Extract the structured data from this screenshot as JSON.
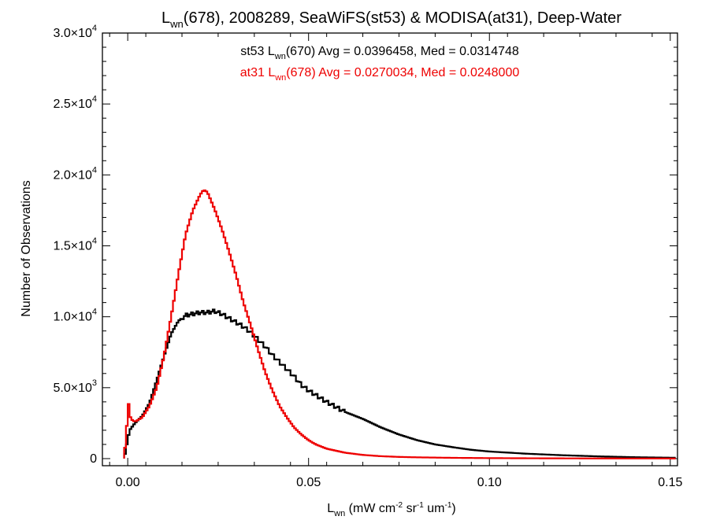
{
  "chart_data": {
    "type": "line",
    "title": {
      "main": "L",
      "sub": "wn",
      "rest": "(678), 2008289, SeaWiFS(st53) & MODISA(at31), Deep-Water"
    },
    "xlabel": {
      "main": "L",
      "sub": "wn",
      "units": [
        " (mW cm",
        "-2",
        " sr",
        "-1",
        " um",
        "-1",
        ")"
      ]
    },
    "ylabel": "Number of Observations",
    "xlim": [
      -0.007,
      0.152
    ],
    "ylim": [
      -500,
      30000
    ],
    "x_ticks": [
      {
        "value": 0.0,
        "label": "0.00"
      },
      {
        "value": 0.05,
        "label": "0.05"
      },
      {
        "value": 0.1,
        "label": "0.10"
      },
      {
        "value": 0.15,
        "label": "0.15"
      }
    ],
    "y_ticks": [
      {
        "value": 0,
        "mant": "0",
        "exp": ""
      },
      {
        "value": 5000,
        "mant": "5.0×10",
        "exp": "3"
      },
      {
        "value": 10000,
        "mant": "1.0×10",
        "exp": "4"
      },
      {
        "value": 15000,
        "mant": "1.5×10",
        "exp": "4"
      },
      {
        "value": 20000,
        "mant": "2.0×10",
        "exp": "4"
      },
      {
        "value": 25000,
        "mant": "2.5×10",
        "exp": "4"
      },
      {
        "value": 30000,
        "mant": "3.0×10",
        "exp": "4"
      }
    ],
    "legend_placement": "top-center",
    "series": [
      {
        "name": "st53",
        "color": "#000000",
        "legend": {
          "pre": "st53 L",
          "sub": "wn",
          "post": "(670) Avg = 0.0396458, Med = 0.0314748"
        },
        "x": [
          -0.001,
          0.0005,
          0.002,
          0.004,
          0.006,
          0.008,
          0.01,
          0.012,
          0.014,
          0.016,
          0.018,
          0.02,
          0.022,
          0.024,
          0.026,
          0.028,
          0.03,
          0.032,
          0.034,
          0.036,
          0.038,
          0.04,
          0.042,
          0.044,
          0.046,
          0.048,
          0.05,
          0.055,
          0.06,
          0.065,
          0.07,
          0.075,
          0.08,
          0.085,
          0.09,
          0.095,
          0.1,
          0.11,
          0.12,
          0.13,
          0.14,
          0.1515
        ],
        "y": [
          0,
          2000,
          2500,
          3000,
          3900,
          5500,
          7200,
          8800,
          9700,
          10100,
          10200,
          10300,
          10300,
          10400,
          10200,
          9900,
          9600,
          9300,
          8900,
          8400,
          7900,
          7300,
          6800,
          6300,
          5800,
          5200,
          4800,
          4000,
          3300,
          2800,
          2200,
          1700,
          1300,
          1000,
          800,
          620,
          500,
          350,
          240,
          160,
          100,
          60
        ]
      },
      {
        "name": "at31",
        "color": "#ee0000",
        "legend": {
          "pre": "at31 L",
          "sub": "wn",
          "post": "(678) Avg = 0.0270034, Med = 0.0248000"
        },
        "x": [
          -0.001,
          0.0003,
          0.0008,
          0.002,
          0.004,
          0.006,
          0.008,
          0.01,
          0.012,
          0.014,
          0.016,
          0.018,
          0.02,
          0.021,
          0.022,
          0.023,
          0.024,
          0.026,
          0.028,
          0.03,
          0.032,
          0.034,
          0.036,
          0.038,
          0.04,
          0.042,
          0.044,
          0.046,
          0.048,
          0.05,
          0.052,
          0.055,
          0.06,
          0.065,
          0.07,
          0.075,
          0.08,
          0.09,
          0.1,
          0.11,
          0.12,
          0.13,
          0.1515
        ],
        "y": [
          0,
          4000,
          2800,
          2600,
          2900,
          3700,
          5000,
          7200,
          10000,
          13000,
          15800,
          17500,
          18600,
          18950,
          18800,
          18200,
          17600,
          16200,
          14600,
          12900,
          11000,
          9400,
          7700,
          6100,
          4800,
          3700,
          2900,
          2200,
          1700,
          1300,
          1000,
          700,
          420,
          260,
          170,
          120,
          90,
          55,
          35,
          25,
          18,
          12,
          8
        ]
      }
    ]
  }
}
